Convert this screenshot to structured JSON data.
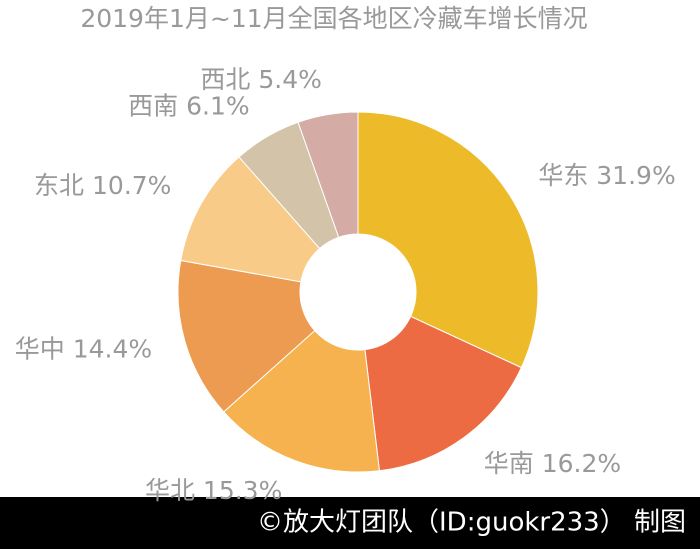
{
  "chart_data": {
    "type": "donut",
    "title": "2019年1月~11月全国各地区冷藏车增长情况",
    "categories": [
      "华东",
      "华南",
      "华北",
      "华中",
      "东北",
      "西南",
      "西北"
    ],
    "values": [
      31.9,
      16.2,
      15.3,
      14.4,
      10.7,
      6.1,
      5.4
    ],
    "value_labels": [
      "31.9%",
      "16.2%",
      "15.3%",
      "14.4%",
      "10.7%",
      "6.1%",
      "5.4%"
    ],
    "colors": [
      "#edbb2a",
      "#ec6b43",
      "#f6b24e",
      "#ec9b50",
      "#f8cb88",
      "#d3c3a8",
      "#d4aba5"
    ],
    "footer": "©放大灯团队（ID:guokr233） 制图"
  }
}
